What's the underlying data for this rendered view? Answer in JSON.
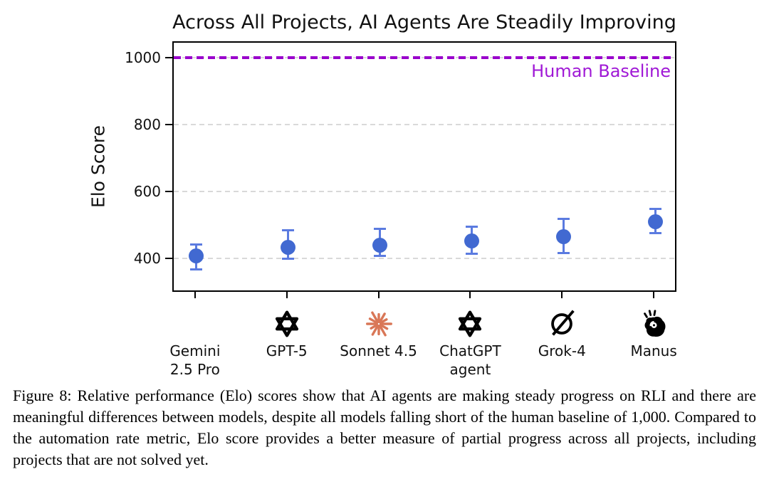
{
  "figure": {
    "caption": "Figure 8: Relative performance (Elo) scores show that AI agents are making steady progress on RLI and there are meaningful differences between models, despite all models falling short of the human baseline of 1,000. Compared to the automation rate metric, Elo score provides a better measure of partial progress across all projects, including projects that are not solved yet."
  },
  "colors": {
    "marker": "#4169d1",
    "errorbar": "#5b7be0",
    "baseline": "#9900cc",
    "baseline_label": "#a019d6",
    "grid": "#d9d9d9",
    "axis": "#000000",
    "anthropic": "#d97757",
    "gemini_gradient": [
      "#e94335",
      "#f9a825",
      "#34a853",
      "#4285f4"
    ]
  },
  "chart_data": {
    "type": "scatter",
    "title": "Across All Projects, AI Agents Are Steadily Improving",
    "xlabel": "",
    "ylabel": "Elo Score",
    "ylim": [
      300,
      1050
    ],
    "yticks": [
      400,
      600,
      800,
      1000
    ],
    "grid": "horizontal dashed",
    "legend": "none",
    "baseline": {
      "value": 1000,
      "label": "Human Baseline"
    },
    "categories": [
      "Gemini 2.5 Pro",
      "GPT-5",
      "Sonnet 4.5",
      "ChatGPT agent",
      "Grok-4",
      "Manus"
    ],
    "series": [
      {
        "name": "Elo score",
        "values": [
          408,
          434,
          440,
          452,
          466,
          509
        ],
        "error_low": [
          365,
          398,
          406,
          413,
          415,
          474
        ],
        "error_high": [
          443,
          485,
          490,
          497,
          520,
          549
        ]
      }
    ],
    "points": [
      {
        "label": "Gemini 2.5 Pro",
        "label_lines": [
          "Gemini",
          "2.5 Pro"
        ],
        "icon": "gemini-icon",
        "value": 408,
        "err_low": 365,
        "err_high": 443
      },
      {
        "label": "GPT-5",
        "label_lines": [
          "GPT-5"
        ],
        "icon": "openai-icon",
        "value": 434,
        "err_low": 398,
        "err_high": 485
      },
      {
        "label": "Sonnet 4.5",
        "label_lines": [
          "Sonnet 4.5"
        ],
        "icon": "anthropic-icon",
        "value": 440,
        "err_low": 406,
        "err_high": 490
      },
      {
        "label": "ChatGPT agent",
        "label_lines": [
          "ChatGPT",
          "agent"
        ],
        "icon": "openai-icon",
        "value": 452,
        "err_low": 413,
        "err_high": 497
      },
      {
        "label": "Grok-4",
        "label_lines": [
          "Grok-4"
        ],
        "icon": "grok-icon",
        "value": 466,
        "err_low": 415,
        "err_high": 520
      },
      {
        "label": "Manus",
        "label_lines": [
          "Manus"
        ],
        "icon": "manus-icon",
        "value": 509,
        "err_low": 474,
        "err_high": 549
      }
    ]
  }
}
